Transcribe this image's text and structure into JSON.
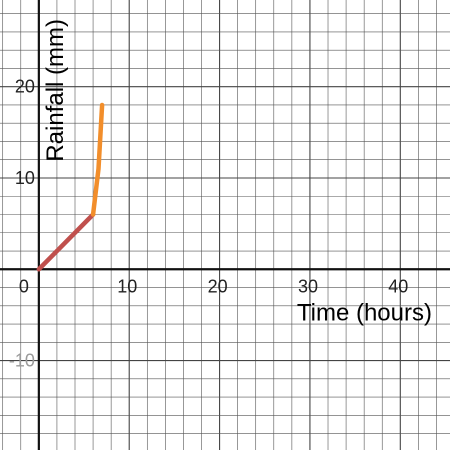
{
  "chart_data": {
    "type": "line",
    "title": "",
    "xlabel": "Time (hours)",
    "ylabel": "Rainfall (mm)",
    "xlim": [
      -4.3,
      45.5
    ],
    "ylim": [
      -19.8,
      29.5
    ],
    "grid": true,
    "grid_minor_step": 2,
    "grid_major_step": 10,
    "x_ticks": [
      {
        "value": 0,
        "label": "0"
      },
      {
        "value": 10,
        "label": "10"
      },
      {
        "value": 20,
        "label": "20"
      },
      {
        "value": 30,
        "label": "30"
      },
      {
        "value": 40,
        "label": "40"
      }
    ],
    "y_ticks": [
      {
        "value": 20,
        "label": "20"
      },
      {
        "value": 10,
        "label": "10"
      },
      {
        "value": -10,
        "label": "-10"
      }
    ],
    "series": [
      {
        "color": "#c0504d",
        "x": [
          0,
          6
        ],
        "y": [
          0,
          6
        ]
      },
      {
        "color": "#f28e2b",
        "x": [
          6,
          6.6,
          7
        ],
        "y": [
          6,
          11,
          18
        ]
      }
    ]
  }
}
